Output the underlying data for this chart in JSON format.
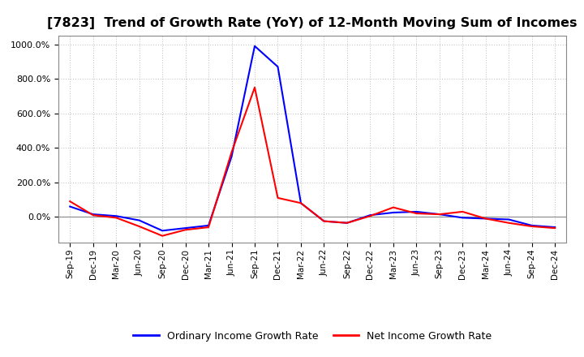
{
  "title": "[7823]  Trend of Growth Rate (YoY) of 12-Month Moving Sum of Incomes",
  "title_fontsize": 11.5,
  "ylim": [
    -150,
    1050
  ],
  "yticks": [
    0,
    200,
    400,
    600,
    800,
    1000
  ],
  "background_color": "#ffffff",
  "grid_color": "#bbbbbb",
  "legend_labels": [
    "Ordinary Income Growth Rate",
    "Net Income Growth Rate"
  ],
  "legend_colors": [
    "blue",
    "red"
  ],
  "x_labels": [
    "Sep-19",
    "Dec-19",
    "Mar-20",
    "Jun-20",
    "Sep-20",
    "Dec-20",
    "Mar-21",
    "Jun-21",
    "Sep-21",
    "Dec-21",
    "Mar-22",
    "Jun-22",
    "Sep-22",
    "Dec-22",
    "Mar-23",
    "Jun-23",
    "Sep-23",
    "Dec-23",
    "Mar-24",
    "Jun-24",
    "Sep-24",
    "Dec-24"
  ],
  "ordinary_income": [
    60,
    15,
    5,
    -20,
    -80,
    -65,
    -50,
    350,
    990,
    870,
    80,
    -25,
    -35,
    10,
    25,
    30,
    15,
    -5,
    -10,
    -15,
    -50,
    -60
  ],
  "net_income": [
    90,
    10,
    -5,
    -55,
    -110,
    -75,
    -60,
    375,
    750,
    110,
    80,
    -25,
    -35,
    5,
    55,
    20,
    15,
    30,
    -10,
    -35,
    -55,
    -65
  ]
}
